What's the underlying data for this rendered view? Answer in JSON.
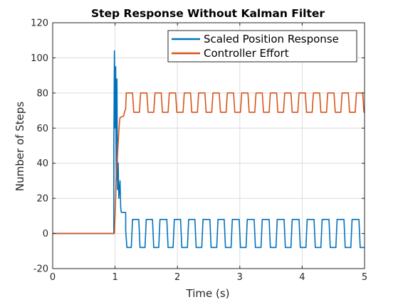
{
  "chart_data": {
    "type": "line",
    "title": "Step Response Without Kalman Filter",
    "xlabel": "Time (s)",
    "ylabel": "Number of Steps",
    "xlim": [
      0,
      5
    ],
    "ylim": [
      -20,
      120
    ],
    "xticks": [
      0,
      1,
      2,
      3,
      4,
      5
    ],
    "yticks": [
      -20,
      0,
      20,
      40,
      60,
      80,
      100,
      120
    ],
    "grid": true,
    "legend_position": "top-right",
    "series": [
      {
        "name": "Scaled Position Response",
        "color": "#0072BD",
        "points": [
          [
            0,
            0
          ],
          [
            0.98,
            0
          ],
          [
            0.98,
            50
          ],
          [
            0.99,
            104
          ],
          [
            1.0,
            60
          ],
          [
            1.01,
            95
          ],
          [
            1.02,
            30
          ],
          [
            1.03,
            88
          ],
          [
            1.04,
            25
          ],
          [
            1.05,
            40
          ],
          [
            1.06,
            20
          ],
          [
            1.08,
            30
          ],
          [
            1.09,
            15
          ],
          [
            1.1,
            12
          ],
          [
            1.17,
            12
          ],
          [
            1.17,
            2
          ],
          [
            1.19,
            -8
          ],
          [
            1.26,
            -8
          ],
          [
            1.28,
            8
          ],
          [
            1.38,
            8
          ],
          [
            1.4,
            -8
          ],
          [
            1.48,
            -8
          ],
          [
            1.5,
            8
          ],
          [
            1.6,
            8
          ],
          [
            1.62,
            -8
          ],
          [
            1.7,
            -8
          ],
          [
            1.72,
            8
          ],
          [
            1.83,
            8
          ],
          [
            1.85,
            -8
          ],
          [
            1.93,
            -8
          ],
          [
            1.95,
            8
          ],
          [
            2.05,
            8
          ],
          [
            2.07,
            -8
          ],
          [
            2.16,
            -8
          ],
          [
            2.18,
            8
          ],
          [
            2.28,
            8
          ],
          [
            2.3,
            -8
          ],
          [
            2.39,
            -8
          ],
          [
            2.41,
            8
          ],
          [
            2.52,
            8
          ],
          [
            2.54,
            -8
          ],
          [
            2.63,
            -8
          ],
          [
            2.65,
            8
          ],
          [
            2.75,
            8
          ],
          [
            2.77,
            -8
          ],
          [
            2.86,
            -8
          ],
          [
            2.88,
            8
          ],
          [
            2.99,
            8
          ],
          [
            3.01,
            -8
          ],
          [
            3.1,
            -8
          ],
          [
            3.12,
            8
          ],
          [
            3.23,
            8
          ],
          [
            3.25,
            -8
          ],
          [
            3.34,
            -8
          ],
          [
            3.36,
            8
          ],
          [
            3.47,
            8
          ],
          [
            3.49,
            -8
          ],
          [
            3.58,
            -8
          ],
          [
            3.6,
            8
          ],
          [
            3.71,
            8
          ],
          [
            3.73,
            -8
          ],
          [
            3.82,
            -8
          ],
          [
            3.84,
            8
          ],
          [
            3.95,
            8
          ],
          [
            3.97,
            -8
          ],
          [
            4.06,
            -8
          ],
          [
            4.08,
            8
          ],
          [
            4.19,
            8
          ],
          [
            4.21,
            -8
          ],
          [
            4.3,
            -8
          ],
          [
            4.32,
            8
          ],
          [
            4.43,
            8
          ],
          [
            4.45,
            -8
          ],
          [
            4.54,
            -8
          ],
          [
            4.56,
            8
          ],
          [
            4.67,
            8
          ],
          [
            4.69,
            -8
          ],
          [
            4.78,
            -8
          ],
          [
            4.8,
            8
          ],
          [
            4.91,
            8
          ],
          [
            4.93,
            -8
          ],
          [
            5.0,
            -8
          ]
        ]
      },
      {
        "name": "Controller Effort",
        "color": "#D95319",
        "points": [
          [
            0,
            0
          ],
          [
            0.99,
            0
          ],
          [
            1.0,
            10
          ],
          [
            1.01,
            20
          ],
          [
            1.02,
            35
          ],
          [
            1.04,
            45
          ],
          [
            1.05,
            52
          ],
          [
            1.06,
            58
          ],
          [
            1.07,
            63
          ],
          [
            1.08,
            66
          ],
          [
            1.14,
            67
          ],
          [
            1.15,
            69
          ],
          [
            1.17,
            71
          ],
          [
            1.18,
            80
          ],
          [
            1.28,
            80
          ],
          [
            1.3,
            69
          ],
          [
            1.39,
            69
          ],
          [
            1.41,
            80
          ],
          [
            1.51,
            80
          ],
          [
            1.53,
            69
          ],
          [
            1.62,
            69
          ],
          [
            1.64,
            80
          ],
          [
            1.74,
            80
          ],
          [
            1.76,
            69
          ],
          [
            1.85,
            69
          ],
          [
            1.87,
            80
          ],
          [
            1.97,
            80
          ],
          [
            1.99,
            69
          ],
          [
            2.09,
            69
          ],
          [
            2.11,
            80
          ],
          [
            2.21,
            80
          ],
          [
            2.23,
            69
          ],
          [
            2.32,
            69
          ],
          [
            2.34,
            80
          ],
          [
            2.44,
            80
          ],
          [
            2.46,
            69
          ],
          [
            2.55,
            69
          ],
          [
            2.57,
            80
          ],
          [
            2.67,
            80
          ],
          [
            2.69,
            69
          ],
          [
            2.78,
            69
          ],
          [
            2.8,
            80
          ],
          [
            2.9,
            80
          ],
          [
            2.92,
            69
          ],
          [
            3.01,
            69
          ],
          [
            3.03,
            80
          ],
          [
            3.13,
            80
          ],
          [
            3.15,
            69
          ],
          [
            3.24,
            69
          ],
          [
            3.26,
            80
          ],
          [
            3.36,
            80
          ],
          [
            3.38,
            69
          ],
          [
            3.47,
            69
          ],
          [
            3.49,
            80
          ],
          [
            3.59,
            80
          ],
          [
            3.61,
            69
          ],
          [
            3.7,
            69
          ],
          [
            3.72,
            80
          ],
          [
            3.82,
            80
          ],
          [
            3.84,
            69
          ],
          [
            3.93,
            69
          ],
          [
            3.95,
            80
          ],
          [
            4.05,
            80
          ],
          [
            4.07,
            69
          ],
          [
            4.16,
            69
          ],
          [
            4.18,
            80
          ],
          [
            4.28,
            80
          ],
          [
            4.3,
            69
          ],
          [
            4.39,
            69
          ],
          [
            4.41,
            80
          ],
          [
            4.51,
            80
          ],
          [
            4.53,
            69
          ],
          [
            4.62,
            69
          ],
          [
            4.64,
            80
          ],
          [
            4.74,
            80
          ],
          [
            4.76,
            69
          ],
          [
            4.85,
            69
          ],
          [
            4.87,
            80
          ],
          [
            4.97,
            80
          ],
          [
            4.99,
            69
          ],
          [
            5.0,
            69
          ]
        ]
      }
    ]
  }
}
